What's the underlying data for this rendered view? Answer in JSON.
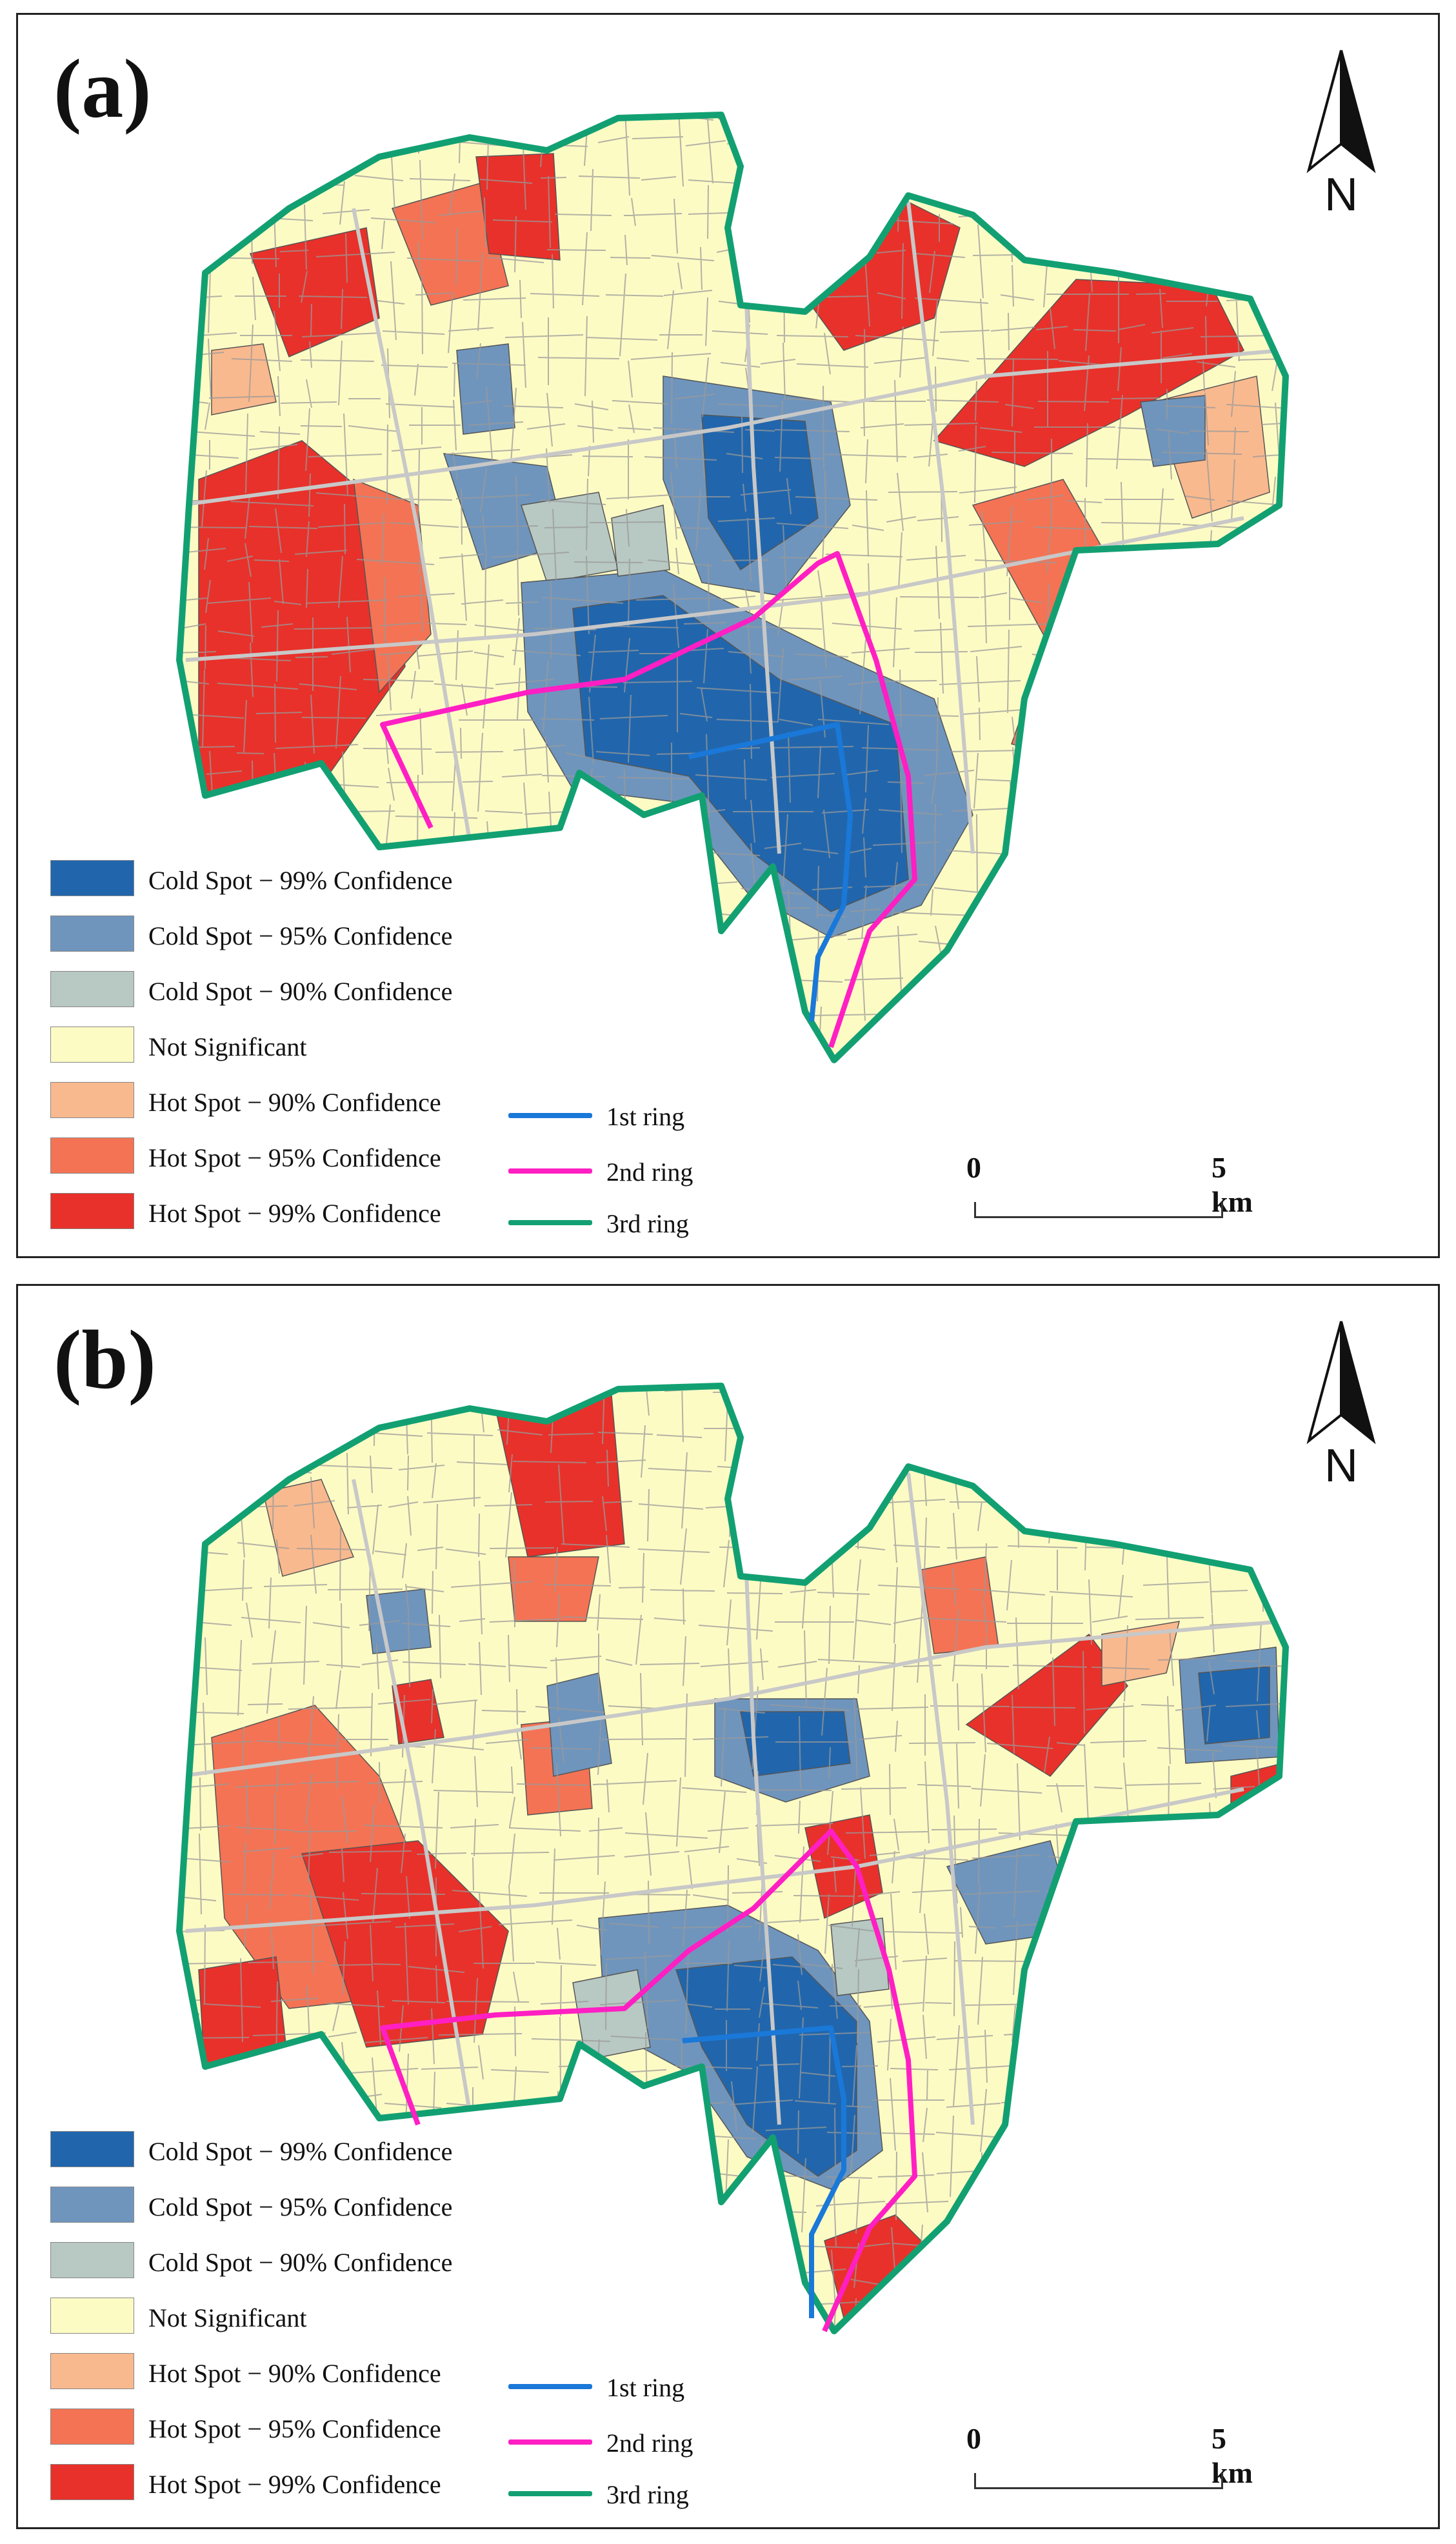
{
  "panels": [
    {
      "label": "(a)"
    },
    {
      "label": "(b)"
    }
  ],
  "north_arrow": {
    "letter": "N"
  },
  "legend": {
    "classes": [
      {
        "label": "Cold Spot − 99% Confidence",
        "color": "#2166ac"
      },
      {
        "label": "Cold Spot − 95% Confidence",
        "color": "#6f95bd"
      },
      {
        "label": "Cold Spot − 90% Confidence",
        "color": "#b8c8c2"
      },
      {
        "label": "Not Significant",
        "color": "#fdfbc4"
      },
      {
        "label": "Hot Spot − 90% Confidence",
        "color": "#f9b98e"
      },
      {
        "label": "Hot Spot − 95% Confidence",
        "color": "#f47354"
      },
      {
        "label": "Hot Spot − 99% Confidence",
        "color": "#e8312a"
      }
    ],
    "rings": [
      {
        "label": "1st ring",
        "color": "#1a78d8"
      },
      {
        "label": "2nd ring",
        "color": "#ff1fc3"
      },
      {
        "label": "3rd ring",
        "color": "#12a072"
      }
    ]
  },
  "scale_bar": {
    "start": "0",
    "end": "5 km"
  },
  "colors": {
    "street": "#9a9a9a",
    "block_edge": "#555555"
  }
}
